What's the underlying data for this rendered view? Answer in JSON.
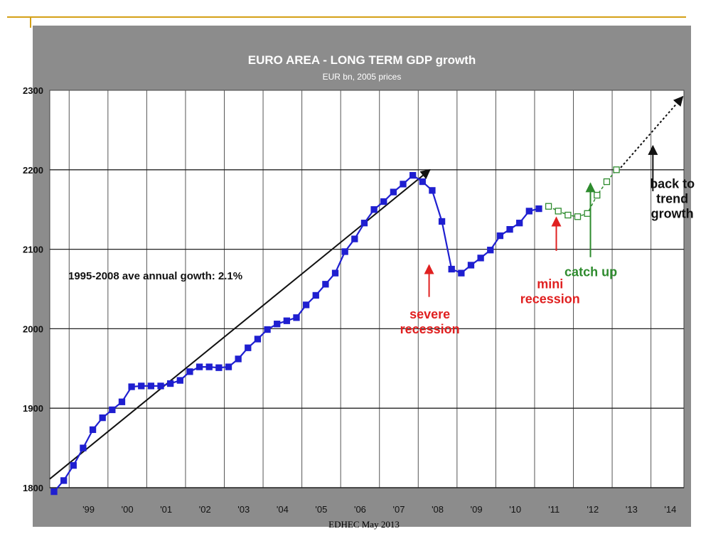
{
  "footer": "EDHEC May 2013",
  "colors": {
    "accent_rule": "#d4a017",
    "panel": "#8c8c8c",
    "plot": "#ffffff",
    "actual": "#1f1fd0",
    "forecast": "#2e8b2e",
    "trend": "#111111",
    "red": "#e02020",
    "green": "#2e8b2e"
  },
  "chart_data": {
    "type": "line",
    "title": "EURO AREA - LONG TERM GDP growth",
    "subtitle": "EUR bn, 2005 prices",
    "xlabel": "",
    "ylabel": "",
    "ylim": [
      1800,
      2300
    ],
    "yticks": [
      1800,
      1900,
      2000,
      2100,
      2200,
      2300
    ],
    "xlim": [
      1998.5,
      2014.85
    ],
    "xtick_labels": [
      "'99",
      "'00",
      "'01",
      "'02",
      "'03",
      "'04",
      "'05",
      "'06",
      "'07",
      "'08",
      "'09",
      "'10",
      "'11",
      "'12",
      "'13",
      "'14"
    ],
    "grid": true,
    "series": [
      {
        "style": "actual",
        "x": [
          1998.61,
          1998.86,
          1999.11,
          1999.36,
          1999.61,
          1999.86,
          2000.11,
          2000.36,
          2000.61,
          2000.86,
          2001.11,
          2001.36,
          2001.61,
          2001.86,
          2002.11,
          2002.36,
          2002.61,
          2002.86,
          2003.11,
          2003.36,
          2003.61,
          2003.86,
          2004.11,
          2004.36,
          2004.61,
          2004.86,
          2005.11,
          2005.36,
          2005.61,
          2005.86,
          2006.11,
          2006.36,
          2006.61,
          2006.86,
          2007.11,
          2007.36,
          2007.61,
          2007.86,
          2008.11,
          2008.36,
          2008.61,
          2008.86,
          2009.11,
          2009.36,
          2009.61,
          2009.86,
          2010.11,
          2010.36,
          2010.61,
          2010.86,
          2011.11
        ],
        "y": [
          1795,
          1809,
          1828,
          1850,
          1873,
          1888,
          1898,
          1908,
          1927,
          1928,
          1928,
          1928,
          1931,
          1935,
          1946,
          1952,
          1952,
          1951,
          1952,
          1962,
          1976,
          1987,
          1999,
          2006,
          2010,
          2014,
          2030,
          2042,
          2056,
          2070,
          2097,
          2113,
          2133,
          2150,
          2160,
          2172,
          2182,
          2193,
          2185,
          2174,
          2135,
          2075,
          2070,
          2080,
          2089,
          2099,
          2117,
          2125,
          2133,
          2148,
          2151
        ]
      },
      {
        "style": "forecast",
        "x": [
          2011.36,
          2011.61,
          2011.86,
          2012.11,
          2012.36,
          2012.61,
          2012.86,
          2013.11
        ],
        "y": [
          2154,
          2148,
          2143,
          2141,
          2145,
          2168,
          2185,
          2200
        ]
      }
    ],
    "trend_note": "1995-2008 ave annual gowth: 2.1%",
    "annotations": [
      {
        "lines": [
          "severe",
          "recession"
        ],
        "color": "red",
        "arrow_to": [
          2008.28,
          2080
        ]
      },
      {
        "lines": [
          "mini",
          "recession"
        ],
        "color": "red",
        "arrow_to": [
          2011.56,
          2140
        ]
      },
      {
        "lines": [
          "catch up"
        ],
        "color": "green",
        "arrow_to": [
          2012.44,
          2183
        ]
      },
      {
        "lines": [
          "back to",
          "trend",
          "growth"
        ],
        "color": "black",
        "arrow_to": [
          2014.05,
          2230
        ]
      }
    ]
  }
}
